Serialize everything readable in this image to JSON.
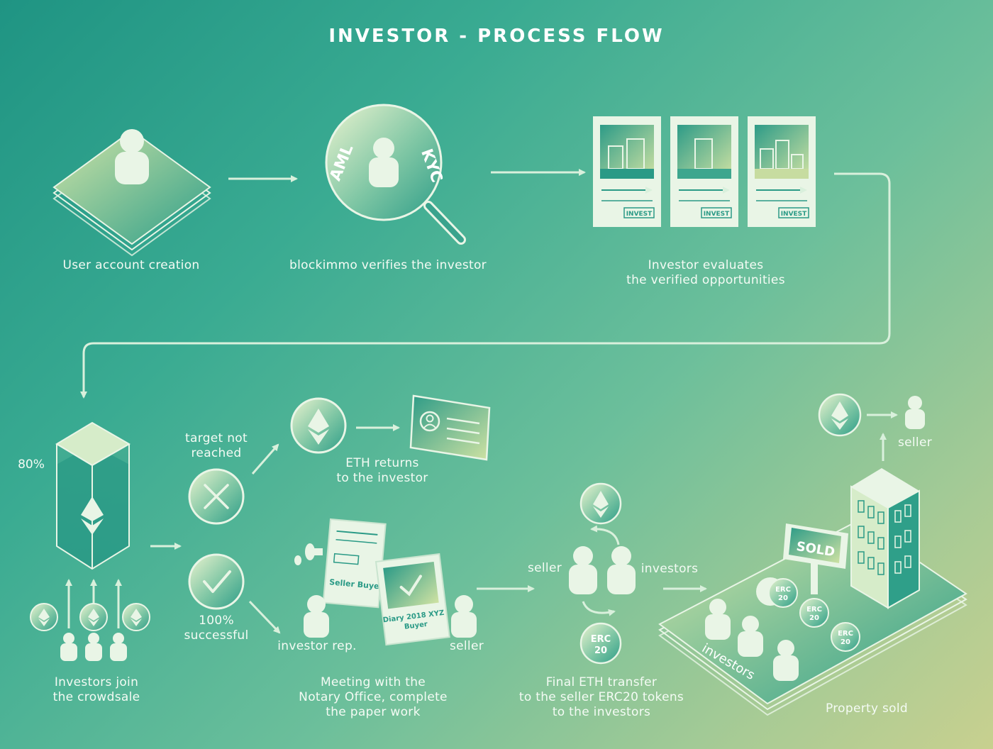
{
  "title": "INVESTOR - PROCESS FLOW",
  "steps": {
    "account": "User account creation",
    "verify": "blockimmo verifies the investor",
    "evaluate": "Investor evaluates\nthe verified opportunities",
    "crowdsale": "Investors join\nthe crowdsale",
    "notary": "Meeting with the\nNotary Office, complete\nthe paper work",
    "transfer": "Final ETH transfer\nto the seller ERC20 tokens\nto the investors",
    "sold": "Property sold"
  },
  "branches": {
    "fail": "target not\nreached",
    "success": "100%\nsuccessful",
    "eth_return": "ETH returns\nto the investor"
  },
  "roles": {
    "investor_rep": "investor rep.",
    "seller": "seller",
    "seller_transfer": "seller",
    "investors_transfer": "investors",
    "seller_final": "seller",
    "investors_ground": "investors"
  },
  "tags": {
    "aml": "AML",
    "kyc": "KYC",
    "invest": "INVEST",
    "erc20": "ERC\n20",
    "sold_sign": "SOLD",
    "doc_seller_buyer": "Seller Buyer",
    "doc_diary": "Diary 2018 XYZ\nBuyer"
  },
  "progress_percent": 80,
  "colors": {
    "line": "#d9f0dc",
    "icon_fill": "#e9f5e6",
    "dark_teal": "#2a9a86"
  }
}
